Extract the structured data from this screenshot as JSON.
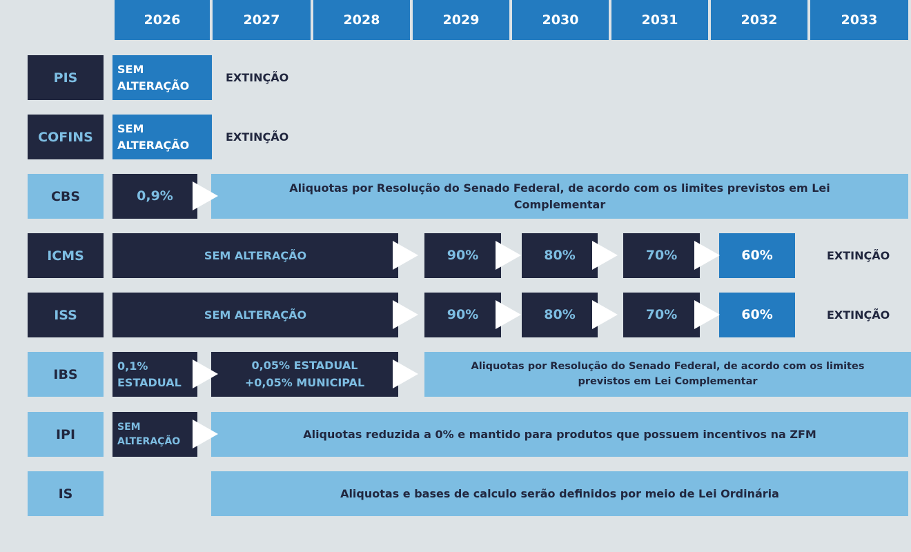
{
  "years": [
    "2026",
    "2027",
    "2028",
    "2029",
    "2030",
    "2031",
    "2032",
    "2033"
  ],
  "colors": {
    "background": "#dde3e6",
    "blue": "#237bc0",
    "dark": "#21273f",
    "light_blue": "#7dbde2"
  },
  "rows": [
    {
      "tax": "PIS",
      "cells": [
        "SEM ALTERAÇÃO",
        "EXTINÇÃO"
      ]
    },
    {
      "tax": "COFINS",
      "cells": [
        "SEM ALTERAÇÃO",
        "EXTINÇÃO"
      ]
    },
    {
      "tax": "CBS",
      "cells": [
        "0,9%",
        "Aliquotas por Resolução do Senado Federal, de acordo com os limites previstos em Lei Complementar"
      ]
    },
    {
      "tax": "ICMS",
      "cells": [
        "SEM ALTERAÇÃO",
        "90%",
        "80%",
        "70%",
        "60%",
        "EXTINÇÃO"
      ]
    },
    {
      "tax": "ISS",
      "cells": [
        "SEM ALTERAÇÃO",
        "90%",
        "80%",
        "70%",
        "60%",
        "EXTINÇÃO"
      ]
    },
    {
      "tax": "IBS",
      "cells": [
        "0,1% ESTADUAL",
        "0,05% ESTADUAL +0,05% MUNICIPAL",
        "Aliquotas por Resolução do Senado Federal, de acordo com os limites previstos em Lei Complementar"
      ]
    },
    {
      "tax": "IPI",
      "cells": [
        "SEM ALTERAÇÃO",
        "Aliquotas reduzida a 0% e mantido para produtos que possuem incentivos na ZFM"
      ]
    },
    {
      "tax": "IS",
      "cells": [
        "Aliquotas e bases de calculo serão definidos por meio de Lei Ordinária"
      ]
    }
  ]
}
